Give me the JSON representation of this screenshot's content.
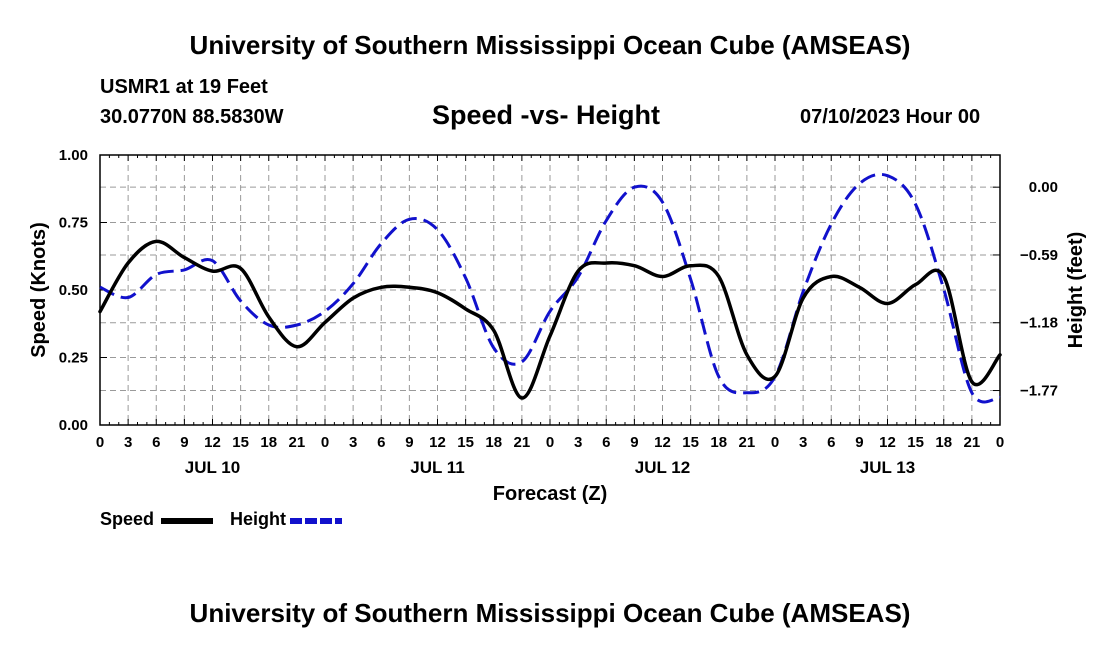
{
  "header": {
    "title": "University of Southern Mississippi Ocean Cube (AMSEAS)",
    "station": "USMR1 at 19 Feet",
    "coords": "30.0770N  88.5830W",
    "subtitle": "Speed -vs- Height",
    "datetime": "07/10/2023 Hour 00"
  },
  "footer": {
    "title": "University of Southern Mississippi Ocean Cube (AMSEAS)"
  },
  "chart_data": {
    "type": "line",
    "xlabel": "Forecast (Z)",
    "ylabel_left": "Speed (Knots)",
    "ylabel_right": "Height (feet)",
    "xlim": [
      0,
      96
    ],
    "ylim_left": [
      0,
      1.0
    ],
    "ylim_right": [
      -2.07,
      0.28
    ],
    "grid": true,
    "x_tick_labels": [
      "0",
      "3",
      "6",
      "9",
      "12",
      "15",
      "18",
      "21",
      "0",
      "3",
      "6",
      "9",
      "12",
      "15",
      "18",
      "21",
      "0",
      "3",
      "6",
      "9",
      "12",
      "15",
      "18",
      "21",
      "0",
      "3",
      "6",
      "9",
      "12",
      "15",
      "18",
      "21",
      "0"
    ],
    "day_labels": [
      {
        "label": "JUL 10",
        "at": 12
      },
      {
        "label": "JUL 11",
        "at": 36
      },
      {
        "label": "JUL 12",
        "at": 60
      },
      {
        "label": "JUL 13",
        "at": 84
      }
    ],
    "left_ticks": [
      {
        "value": 0.0,
        "label": "0.00"
      },
      {
        "value": 0.25,
        "label": "0.25"
      },
      {
        "value": 0.5,
        "label": "0.50"
      },
      {
        "value": 0.75,
        "label": "0.75"
      },
      {
        "value": 1.0,
        "label": "1.00"
      }
    ],
    "right_ticks": [
      {
        "value": 0.0,
        "label": "0.00"
      },
      {
        "value": -0.59,
        "label": "−0.59"
      },
      {
        "value": -1.18,
        "label": "−1.18"
      },
      {
        "value": -1.77,
        "label": "−1.77"
      }
    ],
    "series": [
      {
        "name": "Speed",
        "axis": "left",
        "color": "#000000",
        "style": "solid",
        "x": [
          0,
          3,
          6,
          9,
          12,
          15,
          18,
          21,
          24,
          27,
          30,
          33,
          36,
          39,
          42,
          45,
          48,
          51,
          54,
          57,
          60,
          63,
          66,
          69,
          72,
          75,
          78,
          81,
          84,
          87,
          90,
          93,
          96
        ],
        "values": [
          0.42,
          0.6,
          0.68,
          0.62,
          0.57,
          0.58,
          0.4,
          0.29,
          0.38,
          0.47,
          0.51,
          0.51,
          0.49,
          0.43,
          0.35,
          0.1,
          0.33,
          0.57,
          0.6,
          0.59,
          0.55,
          0.59,
          0.55,
          0.26,
          0.18,
          0.47,
          0.55,
          0.51,
          0.45,
          0.52,
          0.55,
          0.16,
          0.26
        ]
      },
      {
        "name": "Height",
        "axis": "right",
        "color": "#1111cc",
        "style": "dashed",
        "x": [
          0,
          3,
          6,
          9,
          12,
          15,
          18,
          21,
          24,
          27,
          30,
          33,
          36,
          39,
          42,
          45,
          48,
          51,
          54,
          57,
          60,
          63,
          66,
          69,
          72,
          75,
          78,
          81,
          84,
          87,
          90,
          93,
          96
        ],
        "values": [
          -0.87,
          -0.96,
          -0.76,
          -0.72,
          -0.64,
          -0.99,
          -1.2,
          -1.2,
          -1.08,
          -0.84,
          -0.49,
          -0.28,
          -0.37,
          -0.79,
          -1.4,
          -1.52,
          -1.08,
          -0.78,
          -0.29,
          0.0,
          -0.13,
          -0.8,
          -1.65,
          -1.79,
          -1.65,
          -0.91,
          -0.32,
          0.03,
          0.1,
          -0.15,
          -0.89,
          -1.79,
          -1.83
        ]
      }
    ]
  },
  "legend": {
    "speed_label": "Speed",
    "height_label": "Height"
  }
}
